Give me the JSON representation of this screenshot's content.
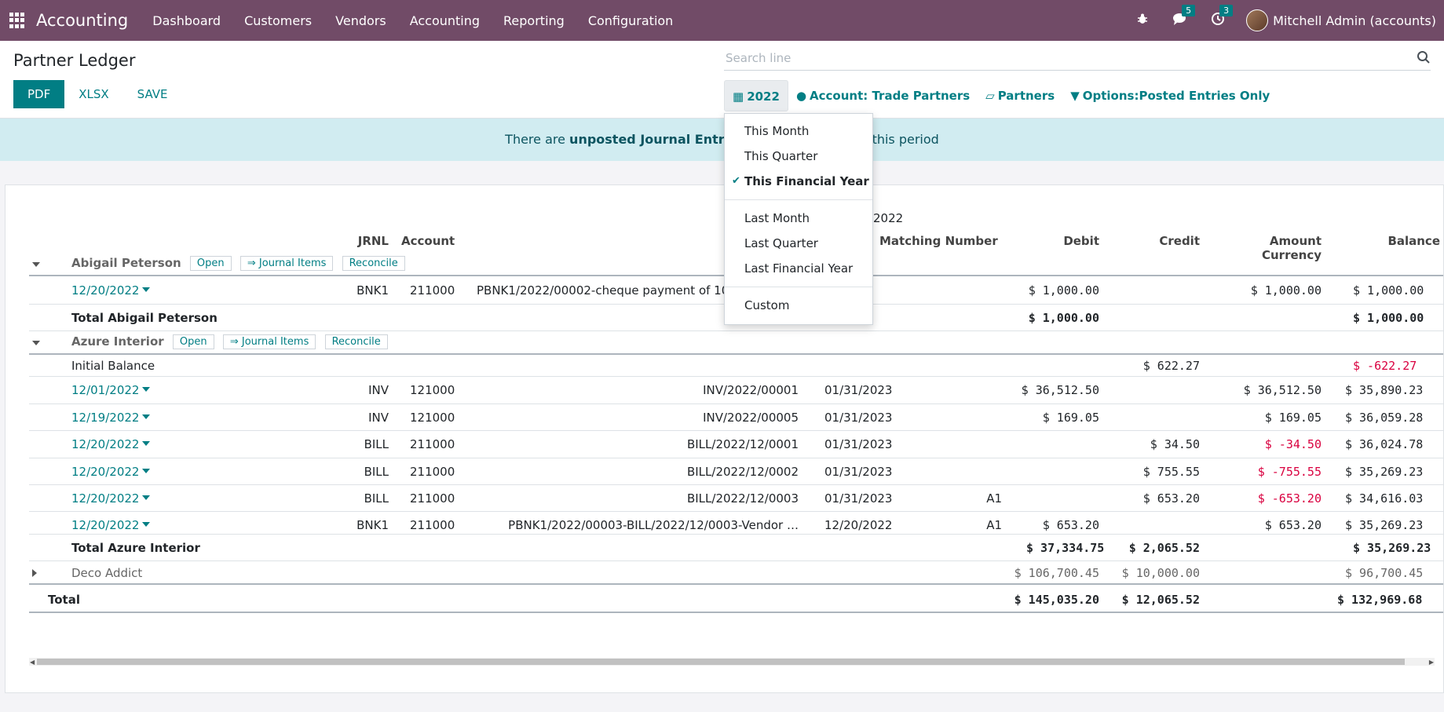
{
  "navbar": {
    "brand": "Accounting",
    "menu": [
      "Dashboard",
      "Customers",
      "Vendors",
      "Accounting",
      "Reporting",
      "Configuration"
    ],
    "messages_count": "5",
    "activities_count": "3",
    "user": "Mitchell Admin (accounts)"
  },
  "control": {
    "title": "Partner Ledger",
    "buttons": {
      "pdf": "PDF",
      "xlsx": "XLSX",
      "save": "SAVE"
    },
    "search_placeholder": "Search line",
    "filters": {
      "date": "2022",
      "account": "Account: Trade Partners",
      "partners": "Partners",
      "options": "Options:Posted Entries Only"
    }
  },
  "alert": {
    "prefix": "There are ",
    "link": "unposted Journal Entries",
    "suffix": " prior or included in this period"
  },
  "dropdown": {
    "group1": [
      "This Month",
      "This Quarter",
      "This Financial Year"
    ],
    "group2": [
      "Last Month",
      "Last Quarter",
      "Last Financial Year"
    ],
    "group3": [
      "Custom"
    ],
    "selected": "This Financial Year"
  },
  "report": {
    "period": "2022",
    "columns": {
      "jrnl": "JRNL",
      "account": "Account",
      "matching": "Matching Number",
      "debit": "Debit",
      "credit": "Credit",
      "amount_currency": "Amount Currency",
      "balance": "Balance"
    },
    "partner_actions": {
      "open": "Open",
      "journal_items": "⇒ Journal Items",
      "reconcile": "Reconcile"
    },
    "abigail": {
      "name": "Abigail Peterson",
      "line": {
        "date": "12/20/2022",
        "jrnl": "BNK1",
        "account": "211000",
        "ref": "PBNK1/2022/00002-cheque payment of 1000",
        "debit": "$ 1,000.00",
        "amount_currency": "$ 1,000.00",
        "balance": "$ 1,000.00"
      },
      "total_label": "Total Abigail Peterson",
      "total_debit": "$ 1,000.00",
      "total_balance": "$ 1,000.00"
    },
    "azure": {
      "name": "Azure Interior",
      "initial": {
        "label": "Initial Balance",
        "credit": "$ 622.27",
        "balance": "$ -622.27"
      },
      "lines": [
        {
          "date": "12/01/2022",
          "jrnl": "INV",
          "account": "121000",
          "ref": "INV/2022/00001",
          "due": "01/31/2023",
          "match": "",
          "debit": "$ 36,512.50",
          "credit": "",
          "amount_currency": "$ 36,512.50",
          "balance": "$ 35,890.23"
        },
        {
          "date": "12/19/2022",
          "jrnl": "INV",
          "account": "121000",
          "ref": "INV/2022/00005",
          "due": "01/31/2023",
          "match": "",
          "debit": "$ 169.05",
          "credit": "",
          "amount_currency": "$ 169.05",
          "balance": "$ 36,059.28"
        },
        {
          "date": "12/20/2022",
          "jrnl": "BILL",
          "account": "211000",
          "ref": "BILL/2022/12/0001",
          "due": "01/31/2023",
          "match": "",
          "debit": "",
          "credit": "$ 34.50",
          "amount_currency": "$ -34.50",
          "balance": "$ 36,024.78"
        },
        {
          "date": "12/20/2022",
          "jrnl": "BILL",
          "account": "211000",
          "ref": "BILL/2022/12/0002",
          "due": "01/31/2023",
          "match": "",
          "debit": "",
          "credit": "$ 755.55",
          "amount_currency": "$ -755.55",
          "balance": "$ 35,269.23"
        },
        {
          "date": "12/20/2022",
          "jrnl": "BILL",
          "account": "211000",
          "ref": "BILL/2022/12/0003",
          "due": "01/31/2023",
          "match": "A1",
          "debit": "",
          "credit": "$ 653.20",
          "amount_currency": "$ -653.20",
          "balance": "$ 34,616.03"
        },
        {
          "date": "12/20/2022",
          "jrnl": "BNK1",
          "account": "211000",
          "ref": "PBNK1/2022/00003-BILL/2022/12/0003-Vendor …",
          "due": "12/20/2022",
          "match": "A1",
          "debit": "$ 653.20",
          "credit": "",
          "amount_currency": "$ 653.20",
          "balance": "$ 35,269.23"
        }
      ],
      "total_label": "Total Azure Interior",
      "total_debit": "$ 37,334.75",
      "total_credit": "$ 2,065.52",
      "total_balance": "$ 35,269.23"
    },
    "deco": {
      "name": "Deco Addict",
      "debit": "$ 106,700.45",
      "credit": "$ 10,000.00",
      "balance": "$ 96,700.45"
    },
    "grand_total": {
      "label": "Total",
      "debit": "$ 145,035.20",
      "credit": "$ 12,065.52",
      "balance": "$ 132,969.68"
    }
  },
  "colors": {
    "brand": "#714b67",
    "accent": "#017e84",
    "negative": "#d9003f",
    "alert_bg": "#d1ecf1"
  }
}
